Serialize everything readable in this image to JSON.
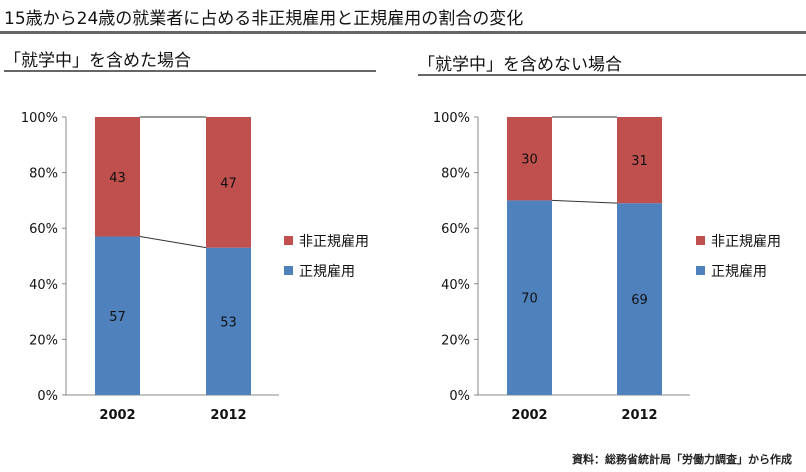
{
  "title": "15歳から24歳の就業者に占める非正規雇用と正規雇用の割合の変化",
  "source": "資料：総務省統計局「労働力調査」から作成",
  "colors": {
    "regular": "#4f81bd",
    "nonregular": "#c0504d"
  },
  "chart_data": [
    {
      "type": "bar",
      "stacked": true,
      "subtitle": "「就学中」を含めた場合",
      "categories": [
        "2002",
        "2012"
      ],
      "series": [
        {
          "name": "正規雇用",
          "values": [
            57,
            53
          ]
        },
        {
          "name": "非正規雇用",
          "values": [
            43,
            47
          ]
        }
      ],
      "yticks": [
        "0%",
        "20%",
        "40%",
        "60%",
        "80%",
        "100%"
      ],
      "ylim": [
        0,
        100
      ],
      "legend": "right"
    },
    {
      "type": "bar",
      "stacked": true,
      "subtitle": "「就学中」を含めない場合",
      "categories": [
        "2002",
        "2012"
      ],
      "series": [
        {
          "name": "正規雇用",
          "values": [
            70,
            69
          ]
        },
        {
          "name": "非正規雇用",
          "values": [
            30,
            31
          ]
        }
      ],
      "yticks": [
        "0%",
        "20%",
        "40%",
        "60%",
        "80%",
        "100%"
      ],
      "ylim": [
        0,
        100
      ],
      "legend": "right"
    }
  ]
}
